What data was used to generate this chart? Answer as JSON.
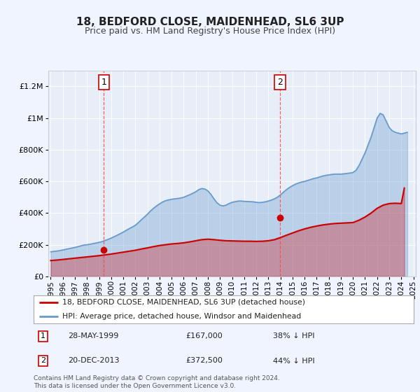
{
  "title": "18, BEDFORD CLOSE, MAIDENHEAD, SL6 3UP",
  "subtitle": "Price paid vs. HM Land Registry's House Price Index (HPI)",
  "background_color": "#f0f4ff",
  "plot_bg_color": "#e8eef8",
  "legend_label_red": "18, BEDFORD CLOSE, MAIDENHEAD, SL6 3UP (detached house)",
  "legend_label_blue": "HPI: Average price, detached house, Windsor and Maidenhead",
  "annotation1_label": "1",
  "annotation1_date": "28-MAY-1999",
  "annotation1_price": "£167,000",
  "annotation1_hpi": "38% ↓ HPI",
  "annotation2_label": "2",
  "annotation2_date": "20-DEC-2013",
  "annotation2_price": "£372,500",
  "annotation2_hpi": "44% ↓ HPI",
  "footer": "Contains HM Land Registry data © Crown copyright and database right 2024.\nThis data is licensed under the Open Government Licence v3.0.",
  "ylim": [
    0,
    1300000
  ],
  "yticks": [
    0,
    200000,
    400000,
    600000,
    800000,
    1000000,
    1200000
  ],
  "ytick_labels": [
    "£0",
    "£200K",
    "£400K",
    "£600K",
    "£800K",
    "£1M",
    "£1.2M"
  ],
  "hpi_color": "#6699cc",
  "price_color": "#cc0000",
  "dashed_line_color": "#ff4444",
  "sale1_year": 1999.4,
  "sale1_price": 167000,
  "sale2_year": 2013.97,
  "sale2_price": 372500,
  "hpi_years": [
    1995.0,
    1995.25,
    1995.5,
    1995.75,
    1996.0,
    1996.25,
    1996.5,
    1996.75,
    1997.0,
    1997.25,
    1997.5,
    1997.75,
    1998.0,
    1998.25,
    1998.5,
    1998.75,
    1999.0,
    1999.25,
    1999.5,
    1999.75,
    2000.0,
    2000.25,
    2000.5,
    2000.75,
    2001.0,
    2001.25,
    2001.5,
    2001.75,
    2002.0,
    2002.25,
    2002.5,
    2002.75,
    2003.0,
    2003.25,
    2003.5,
    2003.75,
    2004.0,
    2004.25,
    2004.5,
    2004.75,
    2005.0,
    2005.25,
    2005.5,
    2005.75,
    2006.0,
    2006.25,
    2006.5,
    2006.75,
    2007.0,
    2007.25,
    2007.5,
    2007.75,
    2008.0,
    2008.25,
    2008.5,
    2008.75,
    2009.0,
    2009.25,
    2009.5,
    2009.75,
    2010.0,
    2010.25,
    2010.5,
    2010.75,
    2011.0,
    2011.25,
    2011.5,
    2011.75,
    2012.0,
    2012.25,
    2012.5,
    2012.75,
    2013.0,
    2013.25,
    2013.5,
    2013.75,
    2014.0,
    2014.25,
    2014.5,
    2014.75,
    2015.0,
    2015.25,
    2015.5,
    2015.75,
    2016.0,
    2016.25,
    2016.5,
    2016.75,
    2017.0,
    2017.25,
    2017.5,
    2017.75,
    2018.0,
    2018.25,
    2018.5,
    2018.75,
    2019.0,
    2019.25,
    2019.5,
    2019.75,
    2020.0,
    2020.25,
    2020.5,
    2020.75,
    2021.0,
    2021.25,
    2021.5,
    2021.75,
    2022.0,
    2022.25,
    2022.5,
    2022.75,
    2023.0,
    2023.25,
    2023.5,
    2023.75,
    2024.0,
    2024.25,
    2024.5
  ],
  "hpi_values": [
    155000,
    158000,
    160000,
    163000,
    167000,
    171000,
    175000,
    179000,
    183000,
    188000,
    193000,
    198000,
    200000,
    203000,
    207000,
    211000,
    215000,
    220000,
    227000,
    234000,
    242000,
    251000,
    260000,
    270000,
    280000,
    291000,
    302000,
    312000,
    323000,
    340000,
    358000,
    375000,
    393000,
    413000,
    430000,
    445000,
    458000,
    470000,
    478000,
    483000,
    487000,
    490000,
    492000,
    495000,
    500000,
    508000,
    516000,
    525000,
    535000,
    548000,
    555000,
    552000,
    540000,
    518000,
    490000,
    465000,
    450000,
    445000,
    450000,
    460000,
    468000,
    472000,
    476000,
    476000,
    474000,
    473000,
    472000,
    471000,
    468000,
    466000,
    468000,
    471000,
    476000,
    482000,
    490000,
    500000,
    515000,
    532000,
    548000,
    562000,
    573000,
    583000,
    590000,
    596000,
    600000,
    606000,
    612000,
    618000,
    622000,
    628000,
    634000,
    638000,
    641000,
    644000,
    646000,
    646000,
    646000,
    648000,
    650000,
    653000,
    656000,
    670000,
    700000,
    740000,
    780000,
    830000,
    880000,
    940000,
    1000000,
    1030000,
    1020000,
    980000,
    940000,
    920000,
    910000,
    905000,
    900000,
    905000,
    910000
  ],
  "price_years": [
    1995.0,
    1995.5,
    1996.0,
    1996.5,
    1997.0,
    1997.5,
    1998.0,
    1998.5,
    1999.0,
    1999.5,
    2000.0,
    2000.5,
    2001.0,
    2001.5,
    2002.0,
    2002.5,
    2003.0,
    2003.5,
    2004.0,
    2004.5,
    2005.0,
    2005.5,
    2006.0,
    2006.5,
    2007.0,
    2007.5,
    2008.0,
    2008.5,
    2009.0,
    2009.5,
    2010.0,
    2010.5,
    2011.0,
    2011.5,
    2012.0,
    2012.5,
    2013.0,
    2013.5,
    2014.0,
    2014.5,
    2015.0,
    2015.5,
    2016.0,
    2016.5,
    2017.0,
    2017.5,
    2018.0,
    2018.5,
    2019.0,
    2019.5,
    2020.0,
    2020.5,
    2021.0,
    2021.5,
    2022.0,
    2022.5,
    2023.0,
    2023.5,
    2024.0,
    2024.25
  ],
  "price_values": [
    100000,
    103000,
    107000,
    111000,
    115000,
    119000,
    123000,
    127000,
    131000,
    136000,
    141000,
    147000,
    153000,
    159000,
    165000,
    173000,
    180000,
    188000,
    195000,
    200000,
    205000,
    208000,
    212000,
    218000,
    225000,
    232000,
    235000,
    232000,
    228000,
    225000,
    224000,
    223000,
    222000,
    222000,
    221000,
    222000,
    225000,
    232000,
    245000,
    260000,
    274000,
    288000,
    300000,
    310000,
    318000,
    325000,
    330000,
    334000,
    336000,
    338000,
    340000,
    355000,
    375000,
    400000,
    430000,
    450000,
    460000,
    462000,
    460000,
    558000
  ],
  "xtick_years": [
    1995,
    1996,
    1997,
    1998,
    1999,
    2000,
    2001,
    2002,
    2003,
    2004,
    2005,
    2006,
    2007,
    2008,
    2009,
    2010,
    2011,
    2012,
    2013,
    2014,
    2015,
    2016,
    2017,
    2018,
    2019,
    2020,
    2021,
    2022,
    2023,
    2024,
    2025
  ],
  "xlim_start": 1994.8,
  "xlim_end": 2025.2
}
